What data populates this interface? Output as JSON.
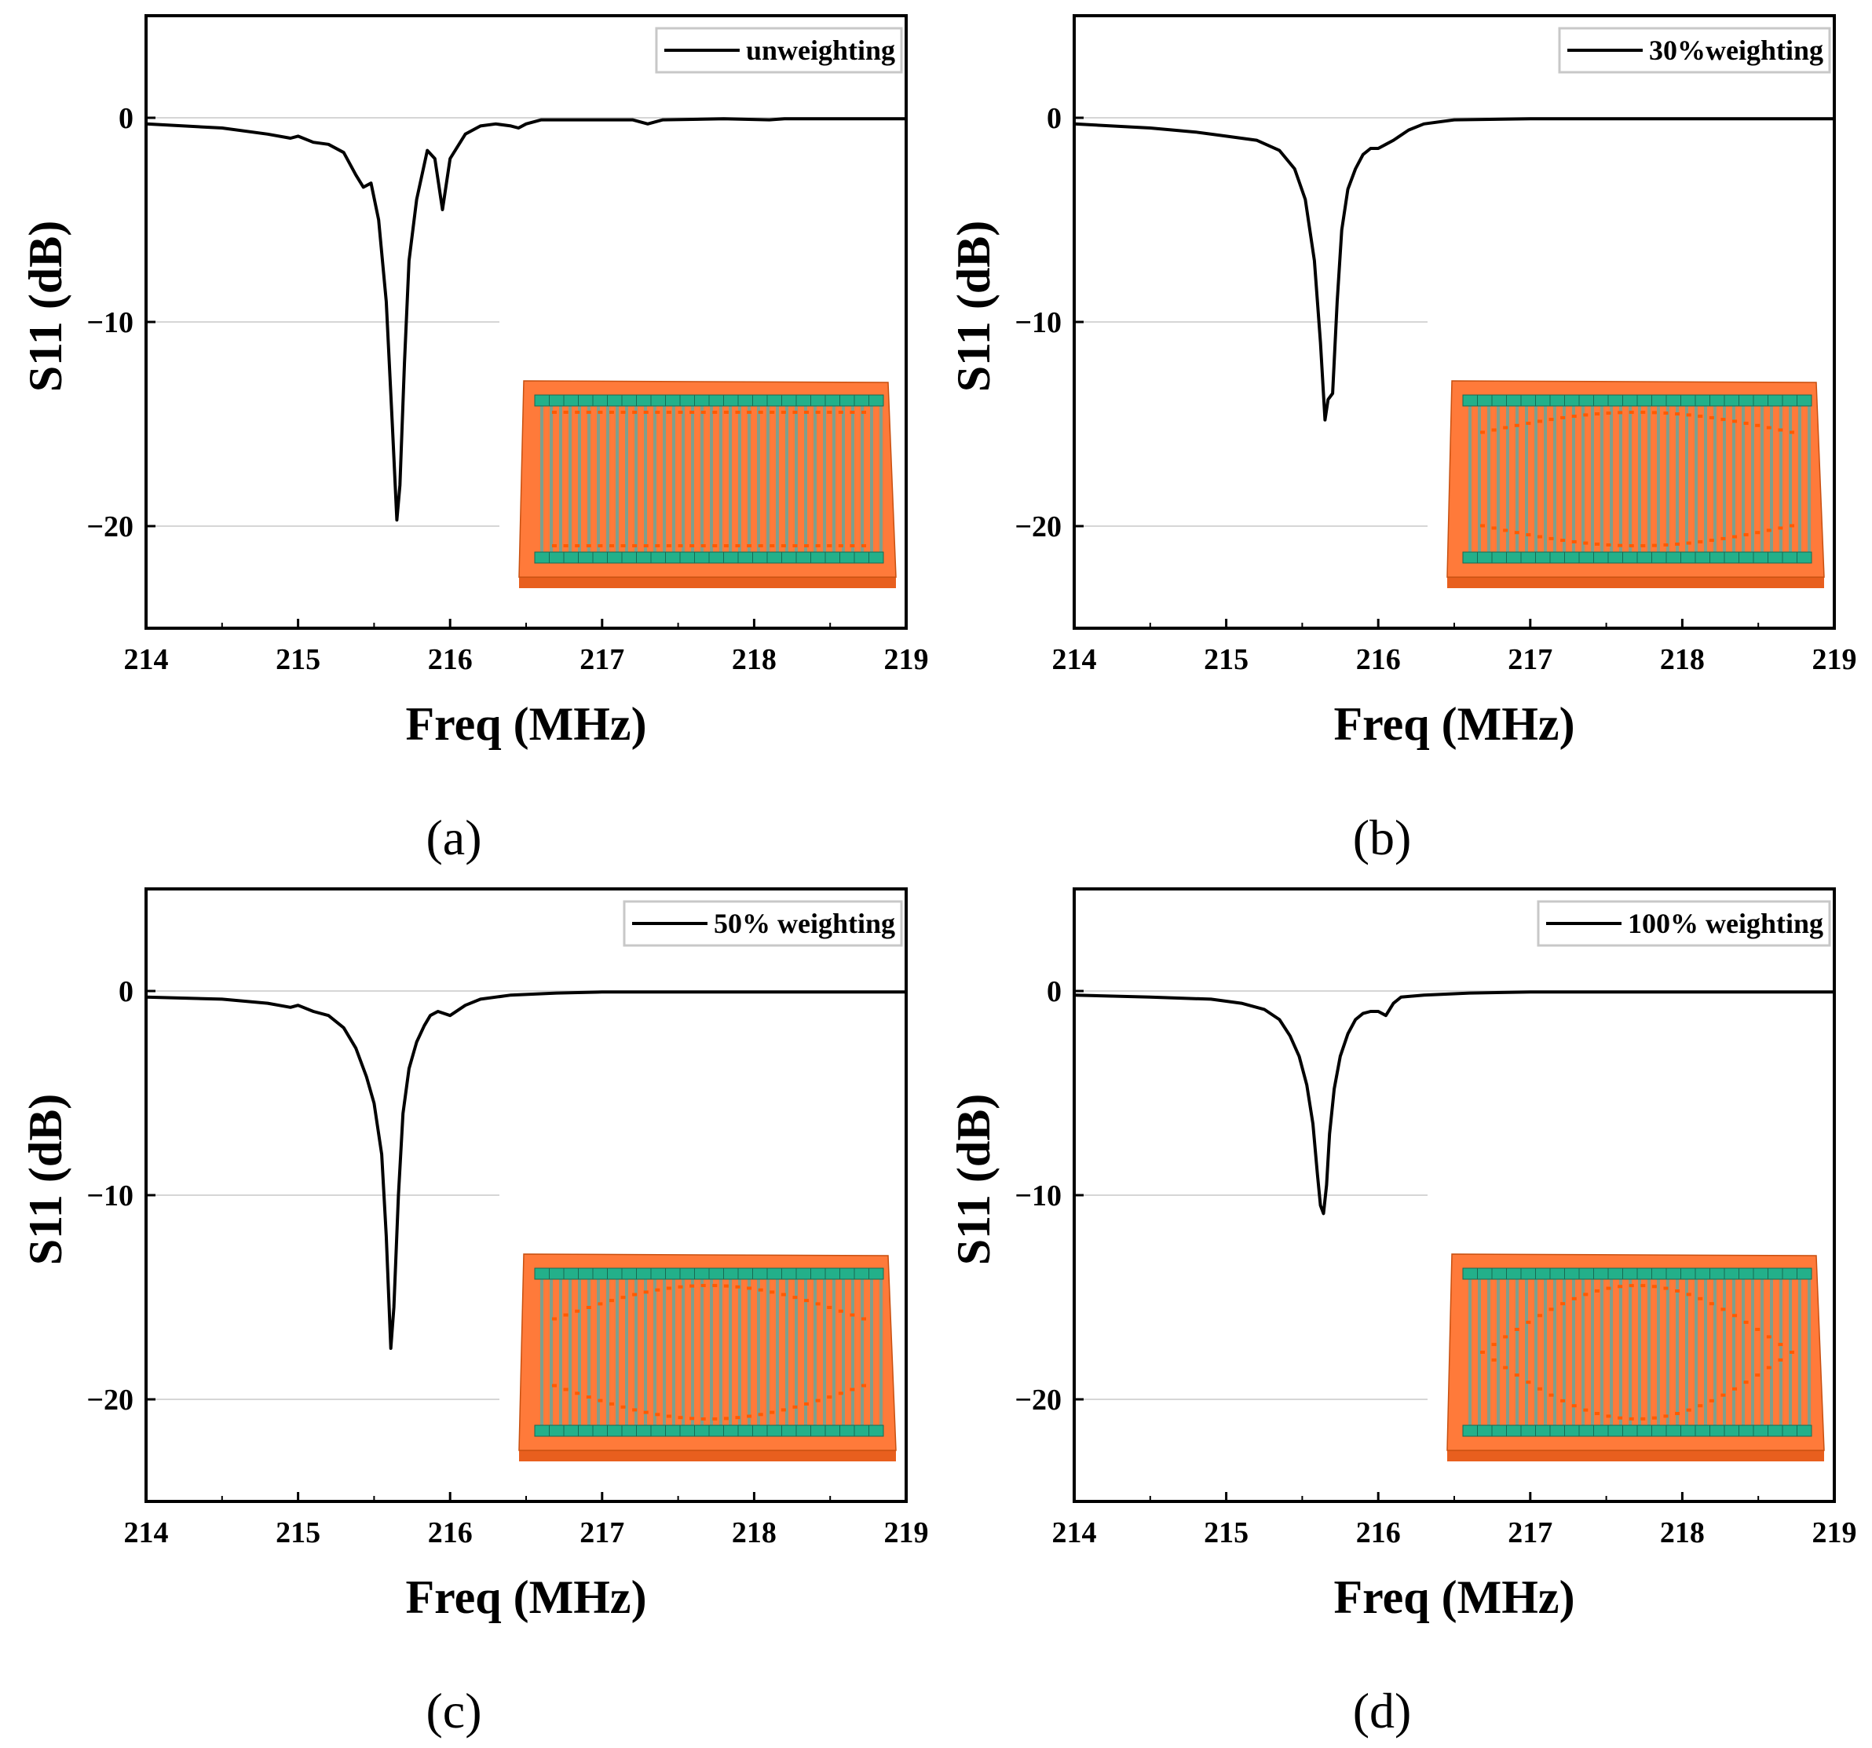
{
  "chart_data": [
    {
      "type": "line",
      "panel_label": "(a)",
      "xlabel": "Freq (MHz)",
      "ylabel": "S11 (dB)",
      "xlim": [
        214,
        219
      ],
      "ylim": [
        -25,
        5
      ],
      "xticks": [
        214,
        215,
        216,
        217,
        218,
        219
      ],
      "yticks": [
        0,
        -10,
        -20
      ],
      "ytick_labels": [
        "0",
        "−10",
        "−20"
      ],
      "grid": "horizontal",
      "legend_position": "top-right",
      "series": [
        {
          "name": "unweighting",
          "x": [
            214.0,
            214.5,
            214.8,
            214.95,
            215.0,
            215.1,
            215.2,
            215.3,
            215.38,
            215.43,
            215.48,
            215.53,
            215.58,
            215.62,
            215.65,
            215.67,
            215.7,
            215.73,
            215.78,
            215.85,
            215.9,
            215.95,
            216.0,
            216.1,
            216.2,
            216.3,
            216.4,
            216.45,
            216.5,
            216.6,
            216.8,
            217.0,
            217.2,
            217.3,
            217.4,
            217.8,
            218.1,
            218.2,
            219.0
          ],
          "y": [
            -0.3,
            -0.5,
            -0.8,
            -1.0,
            -0.9,
            -1.2,
            -1.3,
            -1.7,
            -2.8,
            -3.4,
            -3.2,
            -5.0,
            -9.0,
            -15.0,
            -19.7,
            -18.0,
            -12.0,
            -7.0,
            -4.0,
            -1.6,
            -2.0,
            -4.5,
            -2.0,
            -0.8,
            -0.4,
            -0.3,
            -0.4,
            -0.5,
            -0.3,
            -0.1,
            -0.1,
            -0.1,
            -0.1,
            -0.3,
            -0.1,
            -0.05,
            -0.1,
            -0.05,
            -0.05
          ]
        }
      ]
    },
    {
      "type": "line",
      "panel_label": "(b)",
      "xlabel": "Freq (MHz)",
      "ylabel": "S11 (dB)",
      "xlim": [
        214,
        219
      ],
      "ylim": [
        -25,
        5
      ],
      "xticks": [
        214,
        215,
        216,
        217,
        218,
        219
      ],
      "yticks": [
        0,
        -10,
        -20
      ],
      "ytick_labels": [
        "0",
        "−10",
        "−20"
      ],
      "grid": "horizontal",
      "legend_position": "top-right",
      "series": [
        {
          "name": "30%weighting",
          "x": [
            214.0,
            214.5,
            214.8,
            215.0,
            215.2,
            215.35,
            215.45,
            215.52,
            215.58,
            215.62,
            215.65,
            215.67,
            215.7,
            215.73,
            215.76,
            215.8,
            215.85,
            215.9,
            215.95,
            216.0,
            216.05,
            216.1,
            216.2,
            216.3,
            216.5,
            217.0,
            218.0,
            219.0
          ],
          "y": [
            -0.3,
            -0.5,
            -0.7,
            -0.9,
            -1.1,
            -1.6,
            -2.5,
            -4.0,
            -7.0,
            -11.0,
            -14.8,
            -13.8,
            -13.5,
            -9.0,
            -5.5,
            -3.5,
            -2.5,
            -1.8,
            -1.5,
            -1.5,
            -1.3,
            -1.1,
            -0.6,
            -0.3,
            -0.1,
            -0.05,
            -0.05,
            -0.05
          ]
        }
      ]
    },
    {
      "type": "line",
      "panel_label": "(c)",
      "xlabel": "Freq (MHz)",
      "ylabel": "S11 (dB)",
      "xlim": [
        214,
        219
      ],
      "ylim": [
        -25,
        5
      ],
      "xticks": [
        214,
        215,
        216,
        217,
        218,
        219
      ],
      "yticks": [
        0,
        -10,
        -20
      ],
      "ytick_labels": [
        "0",
        "−10",
        "−20"
      ],
      "grid": "horizontal",
      "legend_position": "top-right",
      "series": [
        {
          "name": "50% weighting",
          "x": [
            214.0,
            214.5,
            214.8,
            214.95,
            215.0,
            215.1,
            215.2,
            215.3,
            215.38,
            215.45,
            215.5,
            215.55,
            215.58,
            215.61,
            215.63,
            215.66,
            215.69,
            215.73,
            215.78,
            215.83,
            215.87,
            215.92,
            216.0,
            216.1,
            216.2,
            216.4,
            216.7,
            217.0,
            218.0,
            219.0
          ],
          "y": [
            -0.3,
            -0.4,
            -0.6,
            -0.8,
            -0.7,
            -1.0,
            -1.2,
            -1.8,
            -2.8,
            -4.2,
            -5.5,
            -8.0,
            -12.0,
            -17.5,
            -15.5,
            -10.0,
            -6.0,
            -3.8,
            -2.5,
            -1.7,
            -1.2,
            -1.0,
            -1.2,
            -0.7,
            -0.4,
            -0.2,
            -0.1,
            -0.05,
            -0.05,
            -0.05
          ]
        }
      ]
    },
    {
      "type": "line",
      "panel_label": "(d)",
      "xlabel": "Freq (MHz)",
      "ylabel": "S11 (dB)",
      "xlim": [
        214,
        219
      ],
      "ylim": [
        -25,
        5
      ],
      "xticks": [
        214,
        215,
        216,
        217,
        218,
        219
      ],
      "yticks": [
        0,
        -10,
        -20
      ],
      "ytick_labels": [
        "0",
        "−10",
        "−20"
      ],
      "grid": "horizontal",
      "legend_position": "top-right",
      "series": [
        {
          "name": "100% weighting",
          "x": [
            214.0,
            214.5,
            214.9,
            215.1,
            215.25,
            215.35,
            215.42,
            215.48,
            215.53,
            215.57,
            215.6,
            215.62,
            215.64,
            215.66,
            215.68,
            215.71,
            215.75,
            215.8,
            215.85,
            215.9,
            215.95,
            216.0,
            216.05,
            216.1,
            216.15,
            216.3,
            216.6,
            217.0,
            218.0,
            219.0
          ],
          "y": [
            -0.2,
            -0.3,
            -0.4,
            -0.6,
            -0.9,
            -1.4,
            -2.2,
            -3.2,
            -4.6,
            -6.5,
            -9.0,
            -10.5,
            -10.9,
            -9.5,
            -7.0,
            -4.8,
            -3.2,
            -2.1,
            -1.4,
            -1.1,
            -1.0,
            -1.0,
            -1.2,
            -0.6,
            -0.3,
            -0.2,
            -0.1,
            -0.05,
            -0.05,
            -0.05
          ]
        }
      ]
    }
  ]
}
